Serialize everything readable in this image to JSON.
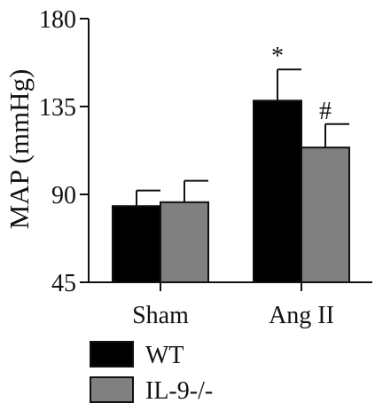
{
  "chart_data": {
    "type": "bar",
    "title": "",
    "xlabel": "",
    "ylabel": "MAP (mmHg)",
    "ylim": [
      45,
      180
    ],
    "yticks": [
      45,
      90,
      135,
      180
    ],
    "categories": [
      "Sham",
      "Ang II"
    ],
    "series": [
      {
        "name": "WT",
        "color": "#000000",
        "values": [
          84,
          138
        ],
        "errors": [
          8,
          16
        ],
        "annotations": [
          "",
          "*"
        ]
      },
      {
        "name": "IL-9-/-",
        "color": "#808080",
        "values": [
          86,
          114
        ],
        "errors": [
          11,
          12
        ],
        "annotations": [
          "",
          "#"
        ]
      }
    ],
    "legend_position": "bottom-left",
    "grid": false
  }
}
